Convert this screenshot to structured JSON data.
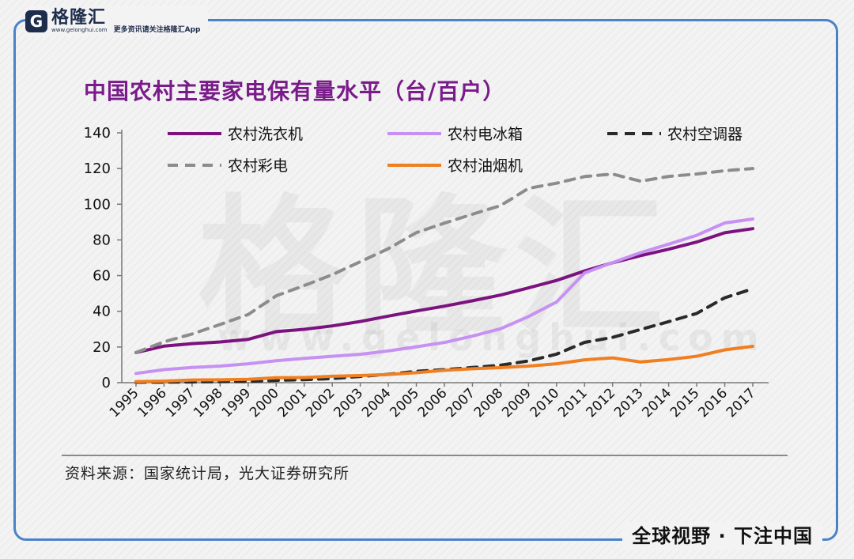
{
  "brand": {
    "logo_letter": "G",
    "name": "格隆汇",
    "url": "www.gelonghui.com",
    "note": "更多资讯请关注格隆汇App",
    "slogan": "全球视野 · 下注中国"
  },
  "chart_title": "中国农村主要家电保有量水平（台/百户）",
  "source": "资料来源：国家统计局，光大证券研究所",
  "chart_data": {
    "type": "line",
    "x": [
      "1995",
      "1996",
      "1997",
      "1998",
      "1999",
      "2000",
      "2001",
      "2002",
      "2003",
      "2004",
      "2005",
      "2006",
      "2007",
      "2008",
      "2009",
      "2010",
      "2011",
      "2012",
      "2013",
      "2014",
      "2015",
      "2016",
      "2017"
    ],
    "ylim": [
      0,
      140
    ],
    "yticks": [
      0,
      20,
      40,
      60,
      80,
      100,
      120,
      140
    ],
    "legend_position": "top",
    "series": [
      {
        "name": "农村洗衣机",
        "color": "#7b127e",
        "dash": "solid",
        "values": [
          16.9,
          20.5,
          21.9,
          22.8,
          24.3,
          28.6,
          29.9,
          31.8,
          34.3,
          37.3,
          40.2,
          42.9,
          45.9,
          49.1,
          53.1,
          57.3,
          62.6,
          67.2,
          71.2,
          74.8,
          78.8,
          84.0,
          86.3
        ]
      },
      {
        "name": "农村电冰箱",
        "color": "#c691f2",
        "dash": "solid",
        "values": [
          5.2,
          7.3,
          8.5,
          9.3,
          10.6,
          12.3,
          13.6,
          14.8,
          15.9,
          17.8,
          20.1,
          22.5,
          26.1,
          30.2,
          37.1,
          45.2,
          61.5,
          67.3,
          72.9,
          77.6,
          82.6,
          89.5,
          91.7
        ]
      },
      {
        "name": "农村空调器",
        "color": "#2a2a2a",
        "dash": "dash",
        "values": [
          0.2,
          0.3,
          0.4,
          0.6,
          0.7,
          1.3,
          1.7,
          2.3,
          3.5,
          4.7,
          6.4,
          7.3,
          8.5,
          9.8,
          12.2,
          16.0,
          22.6,
          25.4,
          29.8,
          34.2,
          38.8,
          47.6,
          52.6
        ]
      },
      {
        "name": "农村彩电",
        "color": "#8c8c8c",
        "dash": "dash",
        "values": [
          16.9,
          22.9,
          27.3,
          32.6,
          38.2,
          48.7,
          54.4,
          60.5,
          67.8,
          75.1,
          84.1,
          89.4,
          94.4,
          99.2,
          108.9,
          111.8,
          115.5,
          116.9,
          112.9,
          115.6,
          116.9,
          118.8,
          120.0
        ]
      },
      {
        "name": "农村油烟机",
        "color": "#f07f22",
        "dash": "solid",
        "values": [
          0.6,
          0.9,
          1.5,
          1.6,
          1.9,
          2.8,
          2.9,
          3.6,
          4.0,
          4.6,
          5.6,
          6.9,
          7.8,
          8.4,
          9.3,
          10.6,
          12.8,
          13.9,
          11.6,
          13.0,
          14.8,
          18.4,
          20.4
        ]
      }
    ]
  }
}
